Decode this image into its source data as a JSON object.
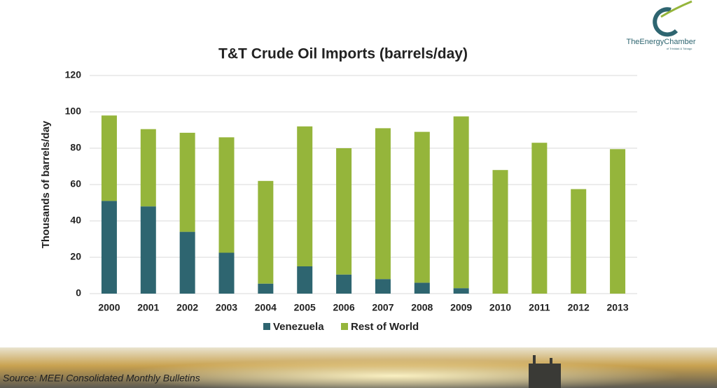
{
  "chart_data": {
    "type": "stacked-bar",
    "title": "T&T Crude Oil Imports (barrels/day)",
    "y_label": "Thousands of barrels/day",
    "categories": [
      "2000",
      "2001",
      "2002",
      "2003",
      "2004",
      "2005",
      "2006",
      "2007",
      "2008",
      "2009",
      "2010",
      "2011",
      "2012",
      "2013"
    ],
    "series": [
      {
        "name": "Venezuela",
        "color": "#2e6570",
        "values": [
          51,
          48,
          34,
          22.5,
          5.5,
          15,
          10.5,
          8,
          6,
          3,
          0,
          0,
          0,
          0
        ]
      },
      {
        "name": "Rest of World",
        "color": "#95b53b",
        "values": [
          47,
          42.5,
          54.5,
          63.5,
          56.5,
          77,
          69.5,
          83,
          83,
          94.5,
          68,
          83,
          57.5,
          79.5
        ]
      }
    ],
    "ylim": [
      0,
      120
    ],
    "yticks": [
      0,
      20,
      40,
      60,
      80,
      100,
      120
    ],
    "grid": true,
    "legend": "bottom"
  },
  "logo": {
    "name": "TheEnergyChamber",
    "tagline": "of Trinidad & Tobago"
  },
  "footer": {
    "source": "Source: MEEI Consolidated Monthly Bulletins"
  }
}
